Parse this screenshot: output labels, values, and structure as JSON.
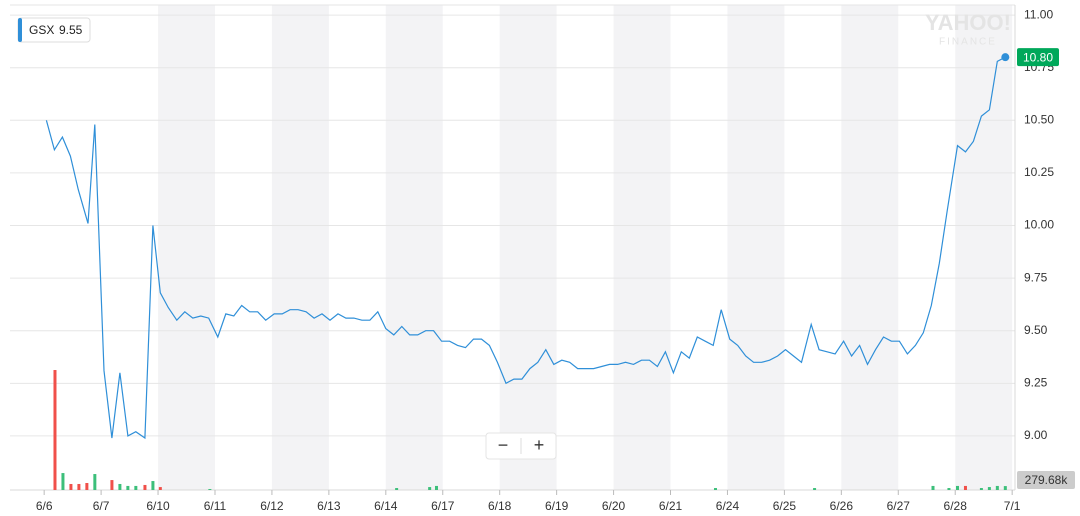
{
  "chart_data": {
    "type": "line",
    "legend": {
      "name": "GSX",
      "value": 9.55,
      "value_label": "9.55"
    },
    "watermark": [
      "YAHOO!",
      "FINANCE"
    ],
    "zoom_controls": [
      "−",
      "+"
    ],
    "xlim": [
      -0.6,
      17.05
    ],
    "xticks": [
      {
        "value": 0,
        "label": "6/6"
      },
      {
        "value": 1,
        "label": "6/7"
      },
      {
        "value": 2,
        "label": "6/10"
      },
      {
        "value": 3,
        "label": "6/11"
      },
      {
        "value": 4,
        "label": "6/12"
      },
      {
        "value": 5,
        "label": "6/13"
      },
      {
        "value": 6,
        "label": "6/14"
      },
      {
        "value": 7,
        "label": "6/17"
      },
      {
        "value": 8,
        "label": "6/18"
      },
      {
        "value": 9,
        "label": "6/19"
      },
      {
        "value": 10,
        "label": "6/20"
      },
      {
        "value": 11,
        "label": "6/21"
      },
      {
        "value": 12,
        "label": "6/24"
      },
      {
        "value": 13,
        "label": "6/25"
      },
      {
        "value": 14,
        "label": "6/26"
      },
      {
        "value": 15,
        "label": "6/27"
      },
      {
        "value": 16,
        "label": "6/28"
      },
      {
        "value": 17,
        "label": "7/1"
      }
    ],
    "ylim": [
      8.743,
      11.048
    ],
    "yticks": [
      {
        "value": 9,
        "label": "9.00"
      },
      {
        "value": 9.25,
        "label": "9.25"
      },
      {
        "value": 9.5,
        "label": "9.50"
      },
      {
        "value": 9.75,
        "label": "9.75"
      },
      {
        "value": 10,
        "label": "10.00"
      },
      {
        "value": 10.25,
        "label": "10.25"
      },
      {
        "value": 10.5,
        "label": "10.50"
      },
      {
        "value": 10.75,
        "label": "10.75"
      },
      {
        "value": 11,
        "label": "11.00"
      }
    ],
    "grid": true,
    "series": [
      {
        "name": "GSX",
        "color": "#2f8fd8",
        "x": [
          0.04,
          0.18,
          0.32,
          0.46,
          0.6,
          0.77,
          0.89,
          1.05,
          1.19,
          1.33,
          1.47,
          1.61,
          1.77,
          1.91,
          2.04,
          2.18,
          2.33,
          2.47,
          2.61,
          2.75,
          2.89,
          3.05,
          3.19,
          3.33,
          3.47,
          3.61,
          3.75,
          3.89,
          4.04,
          4.18,
          4.32,
          4.46,
          4.6,
          4.74,
          4.88,
          5.02,
          5.16,
          5.3,
          5.44,
          5.58,
          5.72,
          5.86,
          6.0,
          6.14,
          6.28,
          6.42,
          6.56,
          6.7,
          6.84,
          6.98,
          7.12,
          7.26,
          7.4,
          7.54,
          7.68,
          7.82,
          7.96,
          8.11,
          8.25,
          8.39,
          8.53,
          8.67,
          8.81,
          8.95,
          9.09,
          9.23,
          9.37,
          9.51,
          9.65,
          9.79,
          9.93,
          10.07,
          10.21,
          10.35,
          10.49,
          10.63,
          10.77,
          10.91,
          11.05,
          11.19,
          11.33,
          11.47,
          11.61,
          11.75,
          11.89,
          12.04,
          12.18,
          12.32,
          12.46,
          12.6,
          12.74,
          12.88,
          13.02,
          13.16,
          13.3,
          13.47,
          13.61,
          13.75,
          13.89,
          14.04,
          14.18,
          14.32,
          14.46,
          14.6,
          14.74,
          14.88,
          15.02,
          15.16,
          15.3,
          15.44,
          15.58,
          15.72,
          15.86,
          16.04,
          16.18,
          16.32,
          16.46,
          16.6,
          16.74,
          16.88
        ],
        "values": [
          10.5,
          10.36,
          10.42,
          10.33,
          10.17,
          10.01,
          10.48,
          9.31,
          8.99,
          9.3,
          9.0,
          9.02,
          8.99,
          10.0,
          9.68,
          9.61,
          9.55,
          9.59,
          9.56,
          9.57,
          9.56,
          9.47,
          9.58,
          9.57,
          9.62,
          9.59,
          9.59,
          9.55,
          9.58,
          9.58,
          9.6,
          9.6,
          9.59,
          9.56,
          9.58,
          9.55,
          9.58,
          9.56,
          9.56,
          9.55,
          9.55,
          9.59,
          9.51,
          9.48,
          9.52,
          9.48,
          9.48,
          9.5,
          9.5,
          9.45,
          9.45,
          9.43,
          9.42,
          9.46,
          9.46,
          9.43,
          9.35,
          9.25,
          9.27,
          9.27,
          9.32,
          9.35,
          9.41,
          9.34,
          9.36,
          9.35,
          9.32,
          9.32,
          9.32,
          9.33,
          9.34,
          9.34,
          9.35,
          9.34,
          9.36,
          9.36,
          9.33,
          9.4,
          9.3,
          9.4,
          9.37,
          9.47,
          9.45,
          9.43,
          9.6,
          9.46,
          9.43,
          9.38,
          9.35,
          9.35,
          9.36,
          9.38,
          9.41,
          9.38,
          9.35,
          9.53,
          9.41,
          9.4,
          9.39,
          9.45,
          9.38,
          9.43,
          9.34,
          9.41,
          9.47,
          9.45,
          9.45,
          9.39,
          9.43,
          9.49,
          9.62,
          9.82,
          10.07,
          10.38,
          10.35,
          10.4,
          10.52,
          10.55,
          10.78,
          10.8
        ],
        "last_label": "10.80",
        "last_color": "#00a85a"
      }
    ],
    "volume": {
      "name": "Volume",
      "vlim": [
        0,
        10000
      ],
      "up_color": "#3cbf7a",
      "down_color": "#f0504a",
      "x": [
        0.19,
        0.33,
        0.47,
        0.61,
        0.75,
        0.89,
        1.19,
        1.33,
        1.47,
        1.61,
        1.77,
        1.91,
        2.04,
        2.91,
        6.19,
        6.77,
        6.89,
        11.79,
        13.53,
        15.61,
        15.89,
        16.04,
        16.18,
        16.46,
        16.6,
        16.74,
        16.88
      ],
      "values": [
        8570,
        1210,
        430,
        430,
        500,
        1140,
        710,
        430,
        290,
        290,
        360,
        640,
        210,
        70,
        140,
        210,
        290,
        140,
        140,
        290,
        140,
        290,
        290,
        140,
        210,
        290,
        279.68
      ],
      "up": [
        false,
        true,
        false,
        false,
        false,
        true,
        false,
        true,
        true,
        true,
        false,
        true,
        false,
        true,
        true,
        true,
        true,
        true,
        true,
        true,
        true,
        true,
        false,
        true,
        true,
        true,
        true
      ],
      "last_label": "279.68k"
    }
  }
}
